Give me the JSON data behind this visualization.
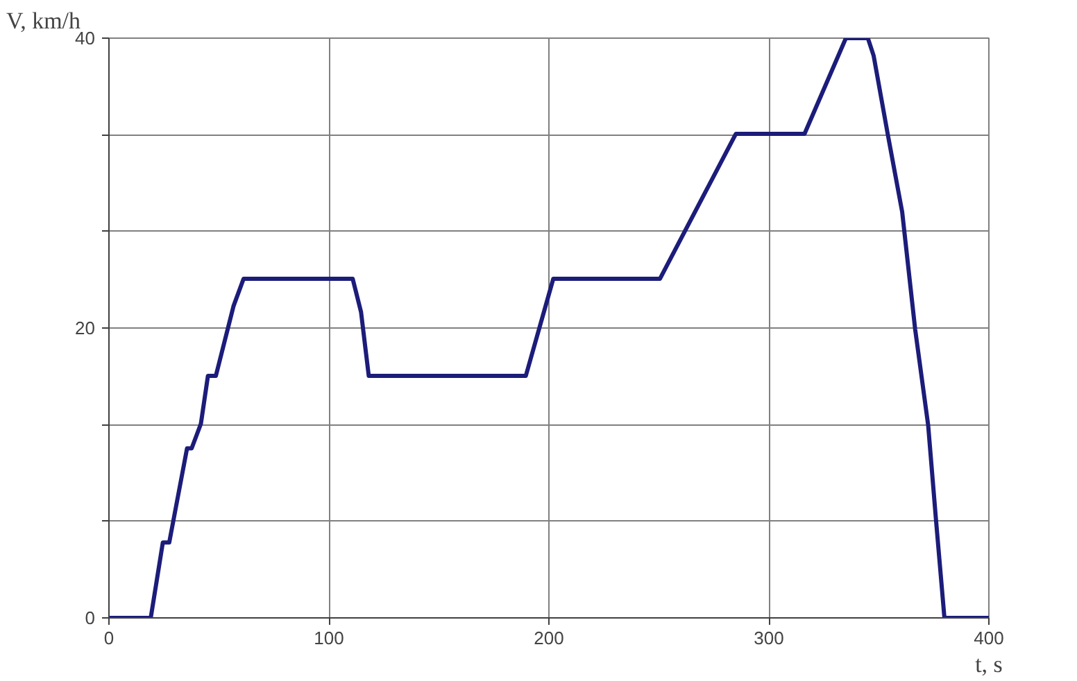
{
  "chart_data": {
    "type": "line",
    "xlabel": "t, s",
    "ylabel": "V, km/h",
    "xlim": [
      0,
      400
    ],
    "ylim": [
      0,
      40
    ],
    "xticks": [
      0,
      100,
      200,
      300,
      400
    ],
    "yticks": [
      0,
      {
        "value": 6.667,
        "label": null
      },
      {
        "value": 13.333,
        "label": null
      },
      20,
      {
        "value": 26.667,
        "label": null
      },
      {
        "value": 33.333,
        "label": null
      },
      40
    ],
    "grid": true,
    "marker": "none",
    "line_style": "solid",
    "series": [
      {
        "color": "#1c1c7a",
        "x": [
          0,
          19,
          24.5,
          27.4,
          35.5,
          37.6,
          41.8,
          45,
          48.6,
          56.6,
          61.2,
          110.8,
          114.6,
          118.1,
          189.5,
          202,
          250.5,
          285,
          316.2,
          335,
          345,
          347.6,
          354,
          360.6,
          366.5,
          372.4,
          376,
          379.8,
          400
        ],
        "values": [
          0,
          0,
          5.2,
          5.2,
          11.7,
          11.7,
          13.4,
          16.7,
          16.7,
          21.5,
          23.4,
          23.4,
          21.1,
          16.7,
          16.7,
          23.4,
          23.4,
          33.4,
          33.4,
          40,
          40,
          38.8,
          33.4,
          28,
          19.9,
          13.3,
          6.7,
          0,
          0
        ]
      }
    ]
  }
}
